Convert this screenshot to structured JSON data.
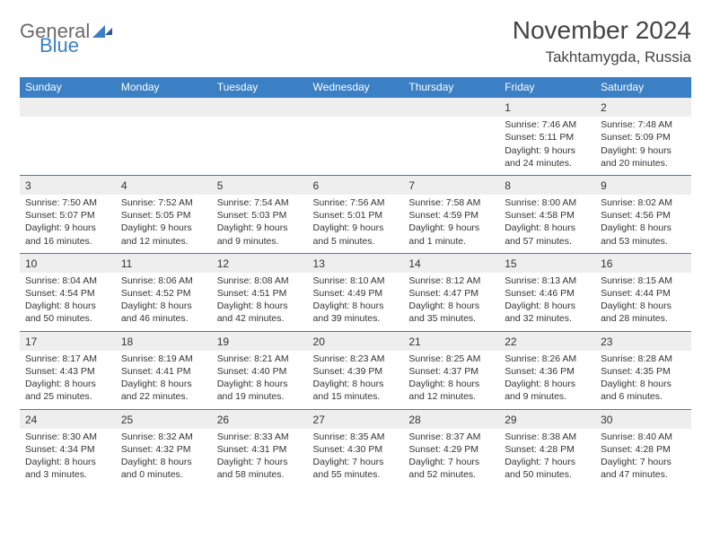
{
  "logo": {
    "word1": "General",
    "word2": "Blue"
  },
  "header": {
    "month_title": "November 2024",
    "location": "Takhtamygda, Russia"
  },
  "colors": {
    "header_bg": "#3b7fc4",
    "header_text": "#ffffff",
    "daynum_bg": "#eeeeee",
    "daynum_border": "#3b7fc4",
    "body_text": "#333333",
    "logo_gray": "#6a6a6a",
    "logo_blue": "#3b7fc4"
  },
  "weekdays": [
    "Sunday",
    "Monday",
    "Tuesday",
    "Wednesday",
    "Thursday",
    "Friday",
    "Saturday"
  ],
  "weeks": [
    [
      {
        "n": "",
        "sr": "",
        "ss": "",
        "dl": ""
      },
      {
        "n": "",
        "sr": "",
        "ss": "",
        "dl": ""
      },
      {
        "n": "",
        "sr": "",
        "ss": "",
        "dl": ""
      },
      {
        "n": "",
        "sr": "",
        "ss": "",
        "dl": ""
      },
      {
        "n": "",
        "sr": "",
        "ss": "",
        "dl": ""
      },
      {
        "n": "1",
        "sr": "Sunrise: 7:46 AM",
        "ss": "Sunset: 5:11 PM",
        "dl": "Daylight: 9 hours and 24 minutes."
      },
      {
        "n": "2",
        "sr": "Sunrise: 7:48 AM",
        "ss": "Sunset: 5:09 PM",
        "dl": "Daylight: 9 hours and 20 minutes."
      }
    ],
    [
      {
        "n": "3",
        "sr": "Sunrise: 7:50 AM",
        "ss": "Sunset: 5:07 PM",
        "dl": "Daylight: 9 hours and 16 minutes."
      },
      {
        "n": "4",
        "sr": "Sunrise: 7:52 AM",
        "ss": "Sunset: 5:05 PM",
        "dl": "Daylight: 9 hours and 12 minutes."
      },
      {
        "n": "5",
        "sr": "Sunrise: 7:54 AM",
        "ss": "Sunset: 5:03 PM",
        "dl": "Daylight: 9 hours and 9 minutes."
      },
      {
        "n": "6",
        "sr": "Sunrise: 7:56 AM",
        "ss": "Sunset: 5:01 PM",
        "dl": "Daylight: 9 hours and 5 minutes."
      },
      {
        "n": "7",
        "sr": "Sunrise: 7:58 AM",
        "ss": "Sunset: 4:59 PM",
        "dl": "Daylight: 9 hours and 1 minute."
      },
      {
        "n": "8",
        "sr": "Sunrise: 8:00 AM",
        "ss": "Sunset: 4:58 PM",
        "dl": "Daylight: 8 hours and 57 minutes."
      },
      {
        "n": "9",
        "sr": "Sunrise: 8:02 AM",
        "ss": "Sunset: 4:56 PM",
        "dl": "Daylight: 8 hours and 53 minutes."
      }
    ],
    [
      {
        "n": "10",
        "sr": "Sunrise: 8:04 AM",
        "ss": "Sunset: 4:54 PM",
        "dl": "Daylight: 8 hours and 50 minutes."
      },
      {
        "n": "11",
        "sr": "Sunrise: 8:06 AM",
        "ss": "Sunset: 4:52 PM",
        "dl": "Daylight: 8 hours and 46 minutes."
      },
      {
        "n": "12",
        "sr": "Sunrise: 8:08 AM",
        "ss": "Sunset: 4:51 PM",
        "dl": "Daylight: 8 hours and 42 minutes."
      },
      {
        "n": "13",
        "sr": "Sunrise: 8:10 AM",
        "ss": "Sunset: 4:49 PM",
        "dl": "Daylight: 8 hours and 39 minutes."
      },
      {
        "n": "14",
        "sr": "Sunrise: 8:12 AM",
        "ss": "Sunset: 4:47 PM",
        "dl": "Daylight: 8 hours and 35 minutes."
      },
      {
        "n": "15",
        "sr": "Sunrise: 8:13 AM",
        "ss": "Sunset: 4:46 PM",
        "dl": "Daylight: 8 hours and 32 minutes."
      },
      {
        "n": "16",
        "sr": "Sunrise: 8:15 AM",
        "ss": "Sunset: 4:44 PM",
        "dl": "Daylight: 8 hours and 28 minutes."
      }
    ],
    [
      {
        "n": "17",
        "sr": "Sunrise: 8:17 AM",
        "ss": "Sunset: 4:43 PM",
        "dl": "Daylight: 8 hours and 25 minutes."
      },
      {
        "n": "18",
        "sr": "Sunrise: 8:19 AM",
        "ss": "Sunset: 4:41 PM",
        "dl": "Daylight: 8 hours and 22 minutes."
      },
      {
        "n": "19",
        "sr": "Sunrise: 8:21 AM",
        "ss": "Sunset: 4:40 PM",
        "dl": "Daylight: 8 hours and 19 minutes."
      },
      {
        "n": "20",
        "sr": "Sunrise: 8:23 AM",
        "ss": "Sunset: 4:39 PM",
        "dl": "Daylight: 8 hours and 15 minutes."
      },
      {
        "n": "21",
        "sr": "Sunrise: 8:25 AM",
        "ss": "Sunset: 4:37 PM",
        "dl": "Daylight: 8 hours and 12 minutes."
      },
      {
        "n": "22",
        "sr": "Sunrise: 8:26 AM",
        "ss": "Sunset: 4:36 PM",
        "dl": "Daylight: 8 hours and 9 minutes."
      },
      {
        "n": "23",
        "sr": "Sunrise: 8:28 AM",
        "ss": "Sunset: 4:35 PM",
        "dl": "Daylight: 8 hours and 6 minutes."
      }
    ],
    [
      {
        "n": "24",
        "sr": "Sunrise: 8:30 AM",
        "ss": "Sunset: 4:34 PM",
        "dl": "Daylight: 8 hours and 3 minutes."
      },
      {
        "n": "25",
        "sr": "Sunrise: 8:32 AM",
        "ss": "Sunset: 4:32 PM",
        "dl": "Daylight: 8 hours and 0 minutes."
      },
      {
        "n": "26",
        "sr": "Sunrise: 8:33 AM",
        "ss": "Sunset: 4:31 PM",
        "dl": "Daylight: 7 hours and 58 minutes."
      },
      {
        "n": "27",
        "sr": "Sunrise: 8:35 AM",
        "ss": "Sunset: 4:30 PM",
        "dl": "Daylight: 7 hours and 55 minutes."
      },
      {
        "n": "28",
        "sr": "Sunrise: 8:37 AM",
        "ss": "Sunset: 4:29 PM",
        "dl": "Daylight: 7 hours and 52 minutes."
      },
      {
        "n": "29",
        "sr": "Sunrise: 8:38 AM",
        "ss": "Sunset: 4:28 PM",
        "dl": "Daylight: 7 hours and 50 minutes."
      },
      {
        "n": "30",
        "sr": "Sunrise: 8:40 AM",
        "ss": "Sunset: 4:28 PM",
        "dl": "Daylight: 7 hours and 47 minutes."
      }
    ]
  ]
}
